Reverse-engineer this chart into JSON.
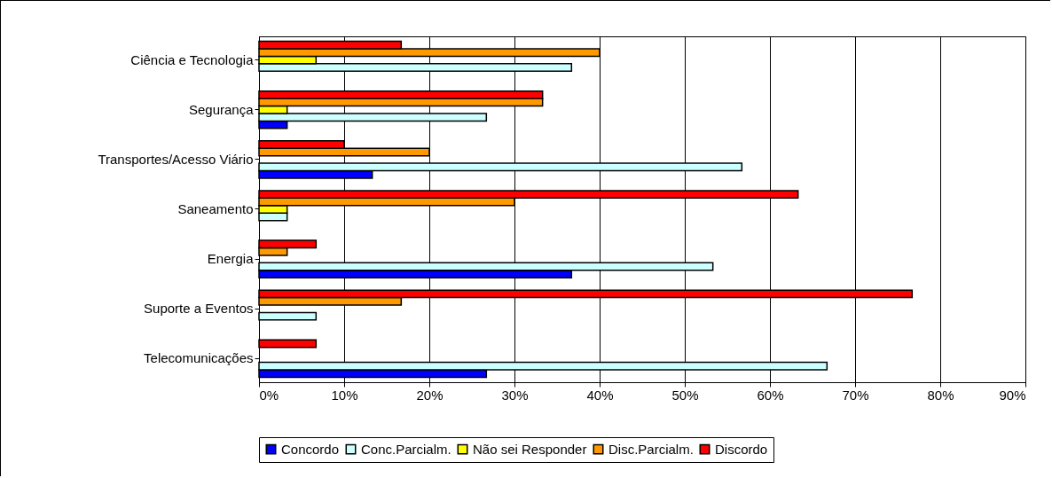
{
  "chart_data": {
    "type": "bar",
    "orientation": "horizontal",
    "categories": [
      "Ciência e Tecnologia",
      "Segurança",
      "Transportes/Acesso Viário",
      "Saneamento",
      "Energia",
      "Suporte a Eventos",
      "Telecomunicações"
    ],
    "series": [
      {
        "name": "Concordo",
        "color": "#0000ff",
        "values": [
          null,
          3.3,
          13.3,
          null,
          36.7,
          null,
          26.7
        ]
      },
      {
        "name": "Conc.Parcialm.",
        "color": "#ccffff",
        "values": [
          36.7,
          26.7,
          56.7,
          3.3,
          53.3,
          6.7,
          66.7
        ]
      },
      {
        "name": "Não sei Responder",
        "color": "#ffff00",
        "values": [
          6.7,
          3.3,
          null,
          3.3,
          null,
          null,
          null
        ]
      },
      {
        "name": "Disc.Parcialm.",
        "color": "#ff9900",
        "values": [
          40,
          33.3,
          20,
          30,
          3.3,
          16.7,
          null
        ]
      },
      {
        "name": "Discordo",
        "color": "#ff0000",
        "values": [
          16.7,
          33.3,
          10,
          63.3,
          6.7,
          76.7,
          6.7
        ]
      }
    ],
    "xlim": [
      0,
      90
    ],
    "xticks": [
      {
        "value": 0,
        "label": "0%"
      },
      {
        "value": 10,
        "label": "10%"
      },
      {
        "value": 20,
        "label": "20%"
      },
      {
        "value": 30,
        "label": "30%"
      },
      {
        "value": 40,
        "label": "40%"
      },
      {
        "value": 50,
        "label": "50%"
      },
      {
        "value": 60,
        "label": "60%"
      },
      {
        "value": 70,
        "label": "70%"
      },
      {
        "value": 80,
        "label": "80%"
      },
      {
        "value": 90,
        "label": "90%"
      }
    ],
    "grid": "x",
    "legend": "bottom"
  }
}
